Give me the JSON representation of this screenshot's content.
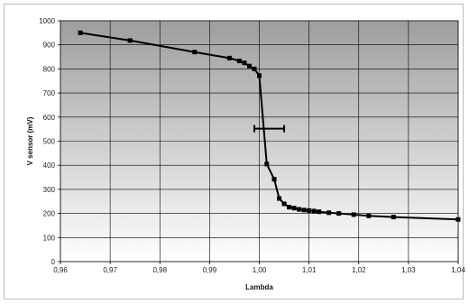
{
  "chart_data": {
    "type": "scatter",
    "title": "",
    "xlabel": "Lambda",
    "ylabel": "V sensor (mV)",
    "xlim": [
      0.96,
      1.04
    ],
    "ylim": [
      0,
      1000
    ],
    "x_ticks": [
      "0,96",
      "0,97",
      "0,98",
      "0,99",
      "1,00",
      "1,01",
      "1,02",
      "1,03",
      "1,04"
    ],
    "y_ticks": [
      "0",
      "100",
      "200",
      "300",
      "400",
      "500",
      "600",
      "700",
      "800",
      "900",
      "1000"
    ],
    "grid": true,
    "legend": "none",
    "plot_background": "#c8c8c8",
    "series": [
      {
        "color": "#000000",
        "marker": "square",
        "points": [
          [
            0.964,
            950
          ],
          [
            0.974,
            918
          ],
          [
            0.987,
            870
          ],
          [
            0.994,
            845
          ],
          [
            0.996,
            833
          ],
          [
            0.997,
            825
          ],
          [
            0.998,
            812
          ],
          [
            0.999,
            800
          ],
          [
            1.0,
            772
          ],
          [
            1.0015,
            405
          ],
          [
            1.003,
            342
          ],
          [
            1.004,
            262
          ],
          [
            1.005,
            240
          ],
          [
            1.006,
            226
          ],
          [
            1.007,
            222
          ],
          [
            1.008,
            217
          ],
          [
            1.009,
            214
          ],
          [
            1.01,
            212
          ],
          [
            1.011,
            210
          ],
          [
            1.012,
            207
          ],
          [
            1.014,
            203
          ],
          [
            1.016,
            200
          ],
          [
            1.019,
            195
          ],
          [
            1.022,
            190
          ],
          [
            1.027,
            185
          ],
          [
            1.04,
            175
          ]
        ]
      }
    ],
    "error_bar": {
      "y": 552,
      "x_low": 0.999,
      "x_high": 1.005
    }
  }
}
